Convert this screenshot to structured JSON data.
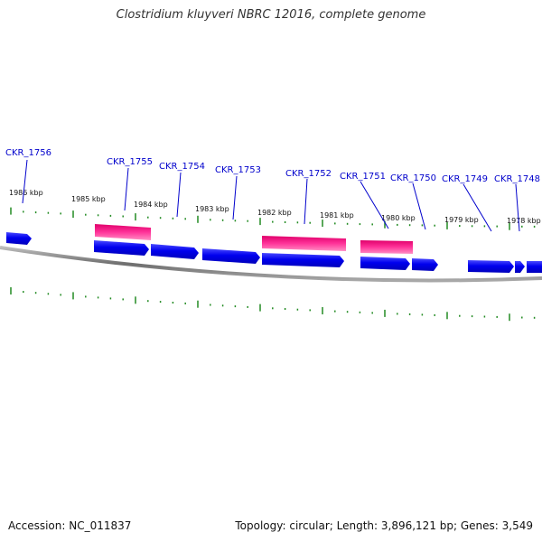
{
  "title": "Clostridium kluyveri NBRC 12016, complete genome",
  "footer": {
    "accession": "Accession: NC_011837",
    "summary": "Topology: circular; Length: 3,896,121 bp; Genes: 3,549"
  },
  "colors": {
    "forward_gene": "#0000ee",
    "rna_feature": "#ff3399",
    "ticks": "#228b22",
    "backbone": "#808080",
    "labels": "#0000cc"
  },
  "tick_labels": [
    "1986 kbp",
    "1985 kbp",
    "1984 kbp",
    "1983 kbp",
    "1982 kbp",
    "1981 kbp",
    "1980 kbp",
    "1979 kbp",
    "1978 kbp"
  ],
  "genes": [
    {
      "id": "CKR_1756",
      "track": "forward"
    },
    {
      "id": "CKR_1755",
      "track": "forward"
    },
    {
      "id": "CKR_1754",
      "track": "forward"
    },
    {
      "id": "CKR_1753",
      "track": "forward"
    },
    {
      "id": "CKR_1752",
      "track": "forward"
    },
    {
      "id": "CKR_1751",
      "track": "forward"
    },
    {
      "id": "CKR_1750",
      "track": "forward"
    },
    {
      "id": "CKR_1749",
      "track": "forward"
    },
    {
      "id": "CKR_1748",
      "track": "forward"
    }
  ]
}
